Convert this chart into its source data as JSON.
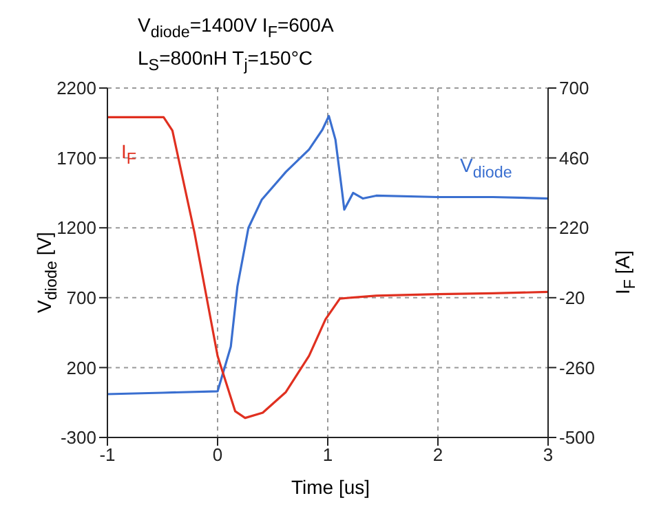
{
  "chart_data": {
    "type": "line",
    "title": "V$_{diode}$=1400V  I$_{F}$=600A",
    "subtitle": "L$_{S}$=800nH  T$_{j}$=150°C",
    "xlabel": "Time [us]",
    "ylabel": "V$_{diode}$ [V]",
    "y2label": "I$_{F}$ [A]",
    "xlim": [
      -1,
      3
    ],
    "xticks": [
      -1,
      0,
      1,
      2,
      3
    ],
    "ylim": [
      -300,
      2200
    ],
    "yticks": [
      -300,
      200,
      700,
      1200,
      1700,
      2200
    ],
    "y2lim": [
      -500,
      700
    ],
    "y2ticks": [
      -500,
      -260,
      -20,
      220,
      460,
      700
    ],
    "grid": true,
    "marker": "none",
    "line_style": "solid",
    "series": [
      {
        "name": "V$_{diode}$",
        "color": "#3a6fd0",
        "x": [
          -1,
          -0.5,
          0,
          0.12,
          0.18,
          0.28,
          0.4,
          0.62,
          0.83,
          0.95,
          1.01,
          1.07,
          1.13,
          1.15,
          1.23,
          1.32,
          1.44,
          2,
          2.5,
          3
        ],
        "values": [
          10,
          20,
          30,
          350,
          780,
          1200,
          1400,
          1600,
          1760,
          1900,
          2000,
          1830,
          1460,
          1330,
          1450,
          1410,
          1430,
          1420,
          1420,
          1410
        ]
      },
      {
        "name": "I$_{F}$",
        "color": "#e03020",
        "axis": "y2",
        "x": [
          -1,
          -0.7,
          -0.49,
          -0.41,
          -0.21,
          0,
          0.16,
          0.25,
          0.41,
          0.62,
          0.83,
          0.98,
          1.11,
          1.44,
          2,
          2.5,
          3
        ],
        "values": [
          600,
          600,
          600,
          554,
          204,
          -220,
          -410,
          -433,
          -415,
          -344,
          -220,
          -94,
          -23,
          -13,
          -8,
          -5,
          0
        ]
      }
    ]
  }
}
